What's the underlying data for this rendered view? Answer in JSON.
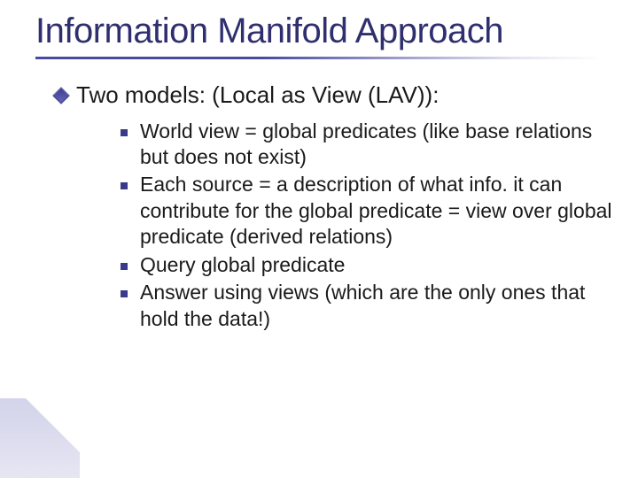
{
  "slide": {
    "title": "Information Manifold Approach",
    "title_color": "#2f2f6f",
    "title_fontsize": 40,
    "underline_gradient_from": "#4a4aa0",
    "underline_gradient_to": "rgba(74,74,160,0)",
    "background_color": "#ffffff",
    "body_text_color": "#1a1a1a",
    "level1": {
      "bullet_color": "#3a3a8a",
      "fontsize": 26,
      "text": "Two models: (Local as View (LAV)):"
    },
    "level2": {
      "bullet_color": "#3a3a8a",
      "bullet_size": 8,
      "fontsize": 23,
      "items": [
        "World view = global predicates (like base relations but does not exist)",
        "Each source = a description of what info. it can contribute for the global predicate = view over global predicate (derived relations)",
        "Query global predicate",
        "Answer using views (which are the only ones that hold the data!)"
      ]
    },
    "corner_accent_color": "#cfcfe8"
  }
}
